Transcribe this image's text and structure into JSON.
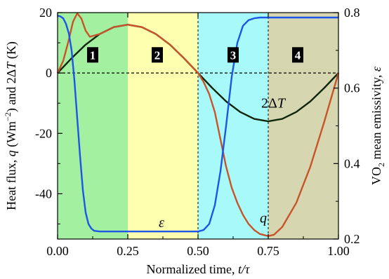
{
  "chart_data": {
    "type": "line",
    "x_label": "Normalized time, t/τ",
    "x_label_plain": "Normalized time, ",
    "x_label_italic": "t/τ",
    "y_left_label_parts": {
      "a": "Heat flux, ",
      "b": "q",
      "c": " (Wm",
      "d": "−2",
      "e": ") and 2Δ",
      "f": "T",
      "g": " (K)"
    },
    "y_right_label_parts": {
      "a": "VO",
      "b": "2",
      "c": " mean emissivity, ",
      "d": "ε"
    },
    "xlim": [
      0,
      1
    ],
    "ylim_left": [
      -55,
      20
    ],
    "ylim_right": [
      0.2,
      0.8
    ],
    "x_ticks": [
      {
        "v": 0.0,
        "label": "0.00"
      },
      {
        "v": 0.25,
        "label": "0.25"
      },
      {
        "v": 0.5,
        "label": "0.50"
      },
      {
        "v": 0.75,
        "label": "0.75"
      },
      {
        "v": 1.0,
        "label": "1.00"
      }
    ],
    "y_left_ticks": [
      {
        "v": 20,
        "label": "20"
      },
      {
        "v": 0,
        "label": "0"
      },
      {
        "v": -20,
        "label": "-20"
      },
      {
        "v": -40,
        "label": "-40"
      }
    ],
    "y_right_ticks": [
      {
        "v": 0.8,
        "label": "0.8"
      },
      {
        "v": 0.6,
        "label": "0.6"
      },
      {
        "v": 0.4,
        "label": "0.4"
      },
      {
        "v": 0.2,
        "label": "0.2"
      }
    ],
    "phases": [
      {
        "label": "1",
        "x0": 0.0,
        "x1": 0.25,
        "color": "#a3f0a0",
        "label_x": 0.125
      },
      {
        "label": "2",
        "x0": 0.25,
        "x1": 0.5,
        "color": "#ffffb0",
        "label_x": 0.355
      },
      {
        "label": "3",
        "x0": 0.5,
        "x1": 0.75,
        "color": "#a8fafa",
        "label_x": 0.625
      },
      {
        "label": "4",
        "x0": 0.75,
        "x1": 1.0,
        "color": "#d6d7b0",
        "label_x": 0.855
      }
    ],
    "phase_label_y": 6,
    "series": [
      {
        "name": "2ΔT",
        "label_parts": {
          "a": "2Δ",
          "b": "T"
        },
        "color": "#10260a",
        "axis": "left",
        "x": [
          0.0,
          0.05,
          0.1,
          0.15,
          0.2,
          0.25,
          0.3,
          0.35,
          0.4,
          0.45,
          0.5,
          0.55,
          0.6,
          0.65,
          0.7,
          0.75,
          0.8,
          0.85,
          0.9,
          0.95,
          1.0
        ],
        "y": [
          0,
          4.9,
          9.4,
          12.9,
          15.2,
          16.0,
          15.2,
          12.9,
          9.4,
          4.9,
          0,
          -4.9,
          -9.4,
          -12.9,
          -15.2,
          -16.0,
          -15.2,
          -12.9,
          -9.4,
          -4.9,
          0
        ],
        "label_at": [
          0.725,
          -11.5
        ]
      },
      {
        "name": "q",
        "label_parts": {
          "a": "q",
          "b": ""
        },
        "color": "#c8542a",
        "axis": "left",
        "x": [
          0.0,
          0.02,
          0.04,
          0.055,
          0.07,
          0.085,
          0.1,
          0.115,
          0.13,
          0.15,
          0.175,
          0.2,
          0.25,
          0.3,
          0.35,
          0.4,
          0.45,
          0.5,
          0.52,
          0.54,
          0.56,
          0.58,
          0.6,
          0.62,
          0.64,
          0.66,
          0.68,
          0.7,
          0.72,
          0.74,
          0.75,
          0.77,
          0.8,
          0.85,
          0.9,
          0.95,
          1.0
        ],
        "y": [
          0,
          4,
          11,
          17,
          19.8,
          18,
          14,
          12,
          12.4,
          12.9,
          14,
          15.2,
          16.0,
          15.2,
          12.9,
          9.4,
          4.9,
          0,
          -3,
          -7,
          -13,
          -22,
          -31,
          -38,
          -43,
          -47,
          -50,
          -52,
          -53.3,
          -53.8,
          -54,
          -53.6,
          -51,
          -43,
          -31,
          -16,
          0
        ],
        "label_at": [
          0.72,
          -49.5
        ]
      },
      {
        "name": "ε",
        "label_parts": {
          "a": "ε",
          "b": ""
        },
        "color": "#1d55e6",
        "axis": "right",
        "x": [
          0.0,
          0.01,
          0.02,
          0.03,
          0.04,
          0.05,
          0.06,
          0.07,
          0.08,
          0.09,
          0.1,
          0.11,
          0.12,
          0.13,
          0.15,
          0.2,
          0.25,
          0.3,
          0.35,
          0.4,
          0.45,
          0.5,
          0.52,
          0.54,
          0.56,
          0.58,
          0.6,
          0.62,
          0.64,
          0.66,
          0.68,
          0.7,
          0.72,
          0.75,
          0.8,
          0.85,
          0.9,
          0.95,
          1.0
        ],
        "y": [
          0.792,
          0.79,
          0.785,
          0.77,
          0.745,
          0.7,
          0.62,
          0.52,
          0.42,
          0.33,
          0.27,
          0.24,
          0.228,
          0.222,
          0.22,
          0.22,
          0.22,
          0.22,
          0.22,
          0.22,
          0.22,
          0.22,
          0.224,
          0.24,
          0.29,
          0.38,
          0.5,
          0.63,
          0.72,
          0.765,
          0.78,
          0.785,
          0.787,
          0.787,
          0.787,
          0.787,
          0.787,
          0.787,
          0.787
        ],
        "label_at": [
          0.36,
          0.232
        ]
      }
    ]
  }
}
